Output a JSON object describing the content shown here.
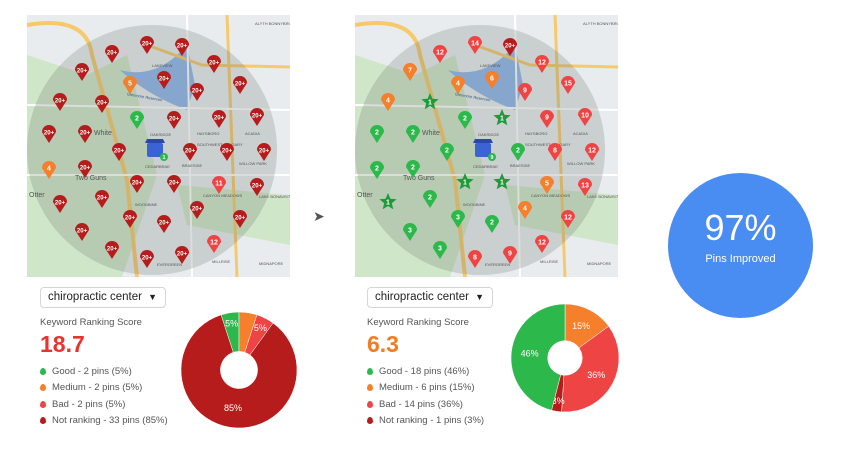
{
  "colors": {
    "good": "#2db84c",
    "medium": "#f57f2a",
    "bad": "#ef4444",
    "not_ranking": "#b71c1c",
    "badge": "#4a8df2"
  },
  "map_labels": [
    "LAKEVIEW",
    "OAKRIDGE",
    "CEDARBRAE",
    "BRAESIDE",
    "White",
    "Two Guns",
    "Otter",
    "WOODBINE",
    "EVERGREEN",
    "MILLRISE",
    "MIDNAPORE",
    "CANYON MEADOWS",
    "LAKE BONAVISTA",
    "WILLOW PARK",
    "ACADIA",
    "HAYSBORO",
    "SOUTHWEST CALGARY",
    "ALYTH BONNYBROOK MANCHESTER",
    "Glenmore Reservoir"
  ],
  "before": {
    "keyword": "chiropractic center",
    "score_label": "Keyword Ranking Score",
    "score": "18.7",
    "legend": [
      {
        "key": "good",
        "text": "Good - 2 pins (5%)"
      },
      {
        "key": "medium",
        "text": "Medium - 2 pins (5%)"
      },
      {
        "key": "bad",
        "text": "Bad - 2 pins (5%)"
      },
      {
        "key": "not_ranking",
        "text": "Not ranking - 33 pins (85%)"
      }
    ],
    "chart_data": {
      "type": "pie",
      "slices": [
        {
          "key": "good",
          "value": 5,
          "label": "5%"
        },
        {
          "key": "medium",
          "value": 5,
          "label": ""
        },
        {
          "key": "bad",
          "value": 5,
          "label": "5%"
        },
        {
          "key": "not_ranking",
          "value": 85,
          "label": "85%"
        }
      ]
    },
    "store_badge": "1",
    "pins": [
      [
        "20+",
        "n"
      ],
      [
        "20+",
        "n"
      ],
      [
        "20+",
        "n"
      ],
      [
        "20+",
        "n"
      ],
      [
        "20+",
        "n"
      ],
      [
        "20+",
        "n"
      ],
      [
        "5",
        "m"
      ],
      [
        "20+",
        "n"
      ],
      [
        "20+",
        "n"
      ],
      [
        "20+",
        "n"
      ],
      [
        "20+",
        "n"
      ],
      [
        "20+",
        "n"
      ],
      [
        "20+",
        "n"
      ],
      [
        "20+",
        "n"
      ],
      [
        "2",
        "g"
      ],
      [
        "20+",
        "n"
      ],
      [
        "20+",
        "n"
      ],
      [
        "20+",
        "n"
      ],
      [
        "20+",
        "n"
      ],
      [
        "20+",
        "n"
      ],
      [
        "20+",
        "n"
      ],
      [
        "4",
        "m"
      ],
      [
        "20+",
        "n"
      ],
      [
        "20+",
        "n"
      ],
      [
        "20+",
        "n"
      ],
      [
        "11",
        "b"
      ],
      [
        "20+",
        "n"
      ],
      [
        "20+",
        "n"
      ],
      [
        "20+",
        "n"
      ],
      [
        "20+",
        "n"
      ],
      [
        "20+",
        "n"
      ],
      [
        "20+",
        "n"
      ],
      [
        "20+",
        "n"
      ],
      [
        "20+",
        "n"
      ],
      [
        "12",
        "b"
      ],
      [
        "20+",
        "n"
      ],
      [
        "20+",
        "n"
      ],
      [
        "20+",
        "n"
      ]
    ]
  },
  "after": {
    "keyword": "chiropractic center",
    "score_label": "Keyword Ranking Score",
    "score": "6.3",
    "legend": [
      {
        "key": "good",
        "text": "Good - 18 pins (46%)"
      },
      {
        "key": "medium",
        "text": "Medium - 6 pins (15%)"
      },
      {
        "key": "bad",
        "text": "Bad - 14 pins (36%)"
      },
      {
        "key": "not_ranking",
        "text": "Not ranking - 1 pins (3%)"
      }
    ],
    "chart_data": {
      "type": "pie",
      "slices": [
        {
          "key": "medium",
          "value": 15,
          "label": "15%"
        },
        {
          "key": "bad",
          "value": 36,
          "label": "36%"
        },
        {
          "key": "not_ranking",
          "value": 3,
          "label": "3%"
        },
        {
          "key": "good",
          "value": 46,
          "label": "46%"
        }
      ]
    },
    "store_badge": "9",
    "pins": [
      [
        "14",
        "b"
      ],
      [
        "20+",
        "n"
      ],
      [
        "12",
        "b"
      ],
      [
        "12",
        "b"
      ],
      [
        "7",
        "m"
      ],
      [
        "6",
        "m"
      ],
      [
        "4",
        "m"
      ],
      [
        "15",
        "b"
      ],
      [
        "9",
        "b"
      ],
      [
        "4",
        "m"
      ],
      [
        "1",
        "s"
      ],
      [
        "1",
        "s"
      ],
      [
        "9",
        "b"
      ],
      [
        "10",
        "b"
      ],
      [
        "2",
        "g"
      ],
      [
        "2",
        "g"
      ],
      [
        "2",
        "g"
      ],
      [
        "2",
        "g"
      ],
      [
        "2",
        "g"
      ],
      [
        "8",
        "b"
      ],
      [
        "12",
        "b"
      ],
      [
        "2",
        "g"
      ],
      [
        "2",
        "g"
      ],
      [
        "1",
        "s"
      ],
      [
        "1",
        "s"
      ],
      [
        "5",
        "m"
      ],
      [
        "13",
        "b"
      ],
      [
        "1",
        "s"
      ],
      [
        "2",
        "g"
      ],
      [
        "4",
        "m"
      ],
      [
        "3",
        "g"
      ],
      [
        "2",
        "g"
      ],
      [
        "12",
        "b"
      ],
      [
        "3",
        "g"
      ],
      [
        "12",
        "b"
      ],
      [
        "3",
        "g"
      ],
      [
        "8",
        "b"
      ],
      [
        "9",
        "b"
      ]
    ]
  },
  "arrow": "➤",
  "improvement": {
    "value": "97%",
    "label": "Pins Improved"
  }
}
